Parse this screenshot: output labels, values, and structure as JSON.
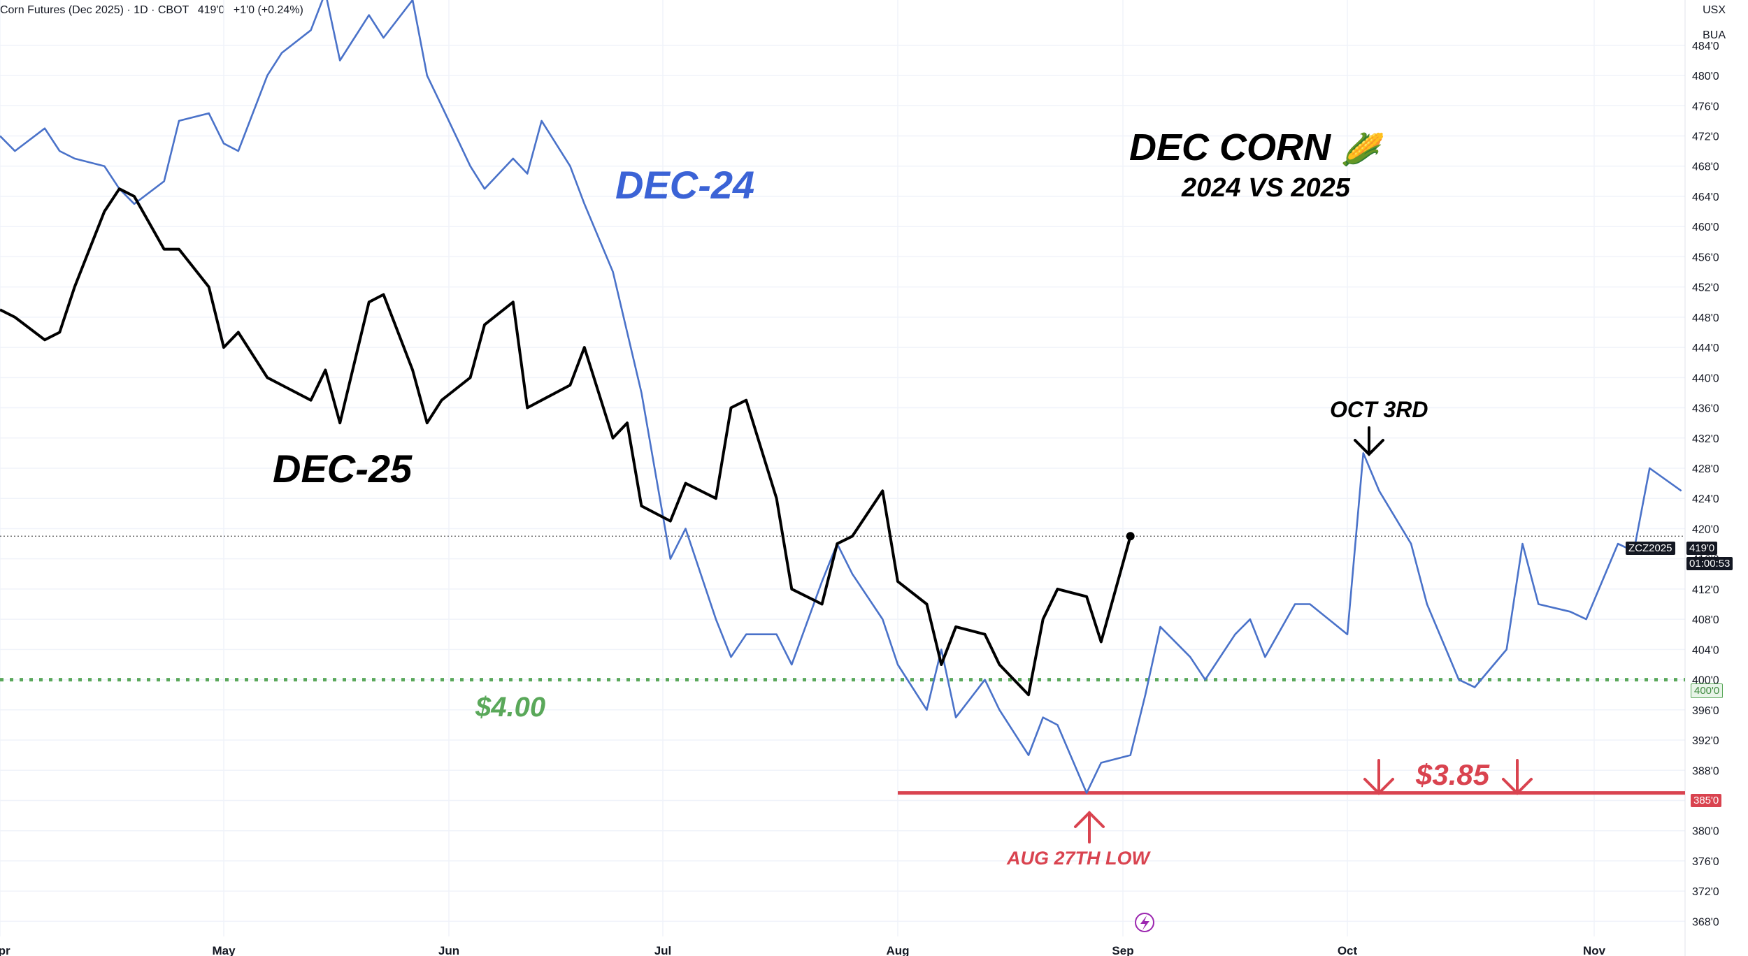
{
  "header": {
    "symbol_title": "Corn Futures (Dec 2025) · 1D · CBOT",
    "last_price": "419'0",
    "change": "+1'0 (+0.24%)"
  },
  "axis_units": {
    "currency": "USX",
    "unit": "BUA"
  },
  "annotations": {
    "title_line1": "DEC CORN",
    "title_emoji": "🌽",
    "title_line2": "2024 VS 2025",
    "dec24_label": "DEC-24",
    "dec25_label": "DEC-25",
    "support_400_label": "$4.00",
    "support_385_label": "$3.85",
    "oct3_label": "OCT 3RD",
    "aug27_label": "AUG 27TH LOW"
  },
  "price_tags": {
    "ticker": "ZCZ2025",
    "current": "419'0",
    "countdown": "01:00:53",
    "level_400": "400'0",
    "level_385": "385'0"
  },
  "colors": {
    "dec24": "#4a72c9",
    "dec25": "#000000",
    "support_green": "#5aa85a",
    "support_red": "#d9434f",
    "grid": "#f0f3fa",
    "axis_text": "#131722",
    "dec24_label": "#3b63d6"
  },
  "chart_data": {
    "type": "line",
    "x_axis": {
      "ticks": [
        "Apr",
        "May",
        "Jun",
        "Jul",
        "Aug",
        "Sep",
        "Oct",
        "Nov"
      ]
    },
    "y_axis": {
      "range": [
        366,
        490
      ],
      "ticks": [
        368,
        372,
        376,
        380,
        384,
        388,
        392,
        396,
        400,
        404,
        408,
        412,
        416,
        420,
        424,
        428,
        432,
        436,
        440,
        444,
        448,
        452,
        456,
        460,
        464,
        468,
        472,
        476,
        480,
        484
      ],
      "tick_labels": [
        "368'0",
        "372'0",
        "376'0",
        "380'0",
        "384'0",
        "388'0",
        "392'0",
        "396'0",
        "400'0",
        "404'0",
        "408'0",
        "412'0",
        "416'0",
        "420'0",
        "424'0",
        "428'0",
        "432'0",
        "436'0",
        "440'0",
        "444'0",
        "448'0",
        "452'0",
        "456'0",
        "460'0",
        "464'0",
        "468'0",
        "472'0",
        "476'0",
        "480'0",
        "484'0"
      ]
    },
    "horizontal_lines": [
      {
        "value": 400,
        "style": "dotted",
        "color": "#5aa85a"
      },
      {
        "value": 385,
        "style": "solid",
        "color": "#d9434f",
        "start_date": "Aug-01"
      },
      {
        "value": 419,
        "style": "dotted",
        "color": "#555555"
      }
    ],
    "series": [
      {
        "name": "DEC-24",
        "color": "#4a72c9",
        "x": [
          "Apr-01",
          "Apr-03",
          "Apr-07",
          "Apr-09",
          "Apr-11",
          "Apr-15",
          "Apr-17",
          "Apr-19",
          "Apr-23",
          "Apr-25",
          "Apr-29",
          "May-01",
          "May-03",
          "May-07",
          "May-09",
          "May-13",
          "May-15",
          "May-17",
          "May-21",
          "May-23",
          "May-27",
          "May-29",
          "May-31",
          "Jun-04",
          "Jun-06",
          "Jun-10",
          "Jun-12",
          "Jun-14",
          "Jun-18",
          "Jun-20",
          "Jun-24",
          "Jun-26",
          "Jun-28",
          "Jul-02",
          "Jul-04",
          "Jul-08",
          "Jul-10",
          "Jul-12",
          "Jul-16",
          "Jul-18",
          "Jul-22",
          "Jul-24",
          "Jul-26",
          "Jul-30",
          "Aug-01",
          "Aug-05",
          "Aug-07",
          "Aug-09",
          "Aug-13",
          "Aug-15",
          "Aug-19",
          "Aug-21",
          "Aug-23",
          "Aug-27",
          "Aug-29",
          "Sep-02",
          "Sep-04",
          "Sep-06",
          "Sep-10",
          "Sep-12",
          "Sep-16",
          "Sep-18",
          "Sep-20",
          "Sep-24",
          "Sep-26",
          "Oct-01",
          "Oct-03",
          "Oct-05",
          "Oct-09",
          "Oct-11",
          "Oct-15",
          "Oct-17",
          "Oct-21",
          "Oct-23",
          "Oct-25",
          "Oct-29",
          "Oct-31",
          "Nov-04",
          "Nov-06",
          "Nov-08",
          "Nov-12"
        ],
        "values": [
          472,
          470,
          473,
          470,
          469,
          468,
          465,
          463,
          466,
          474,
          475,
          471,
          470,
          480,
          483,
          486,
          491,
          482,
          488,
          485,
          490,
          480,
          476,
          468,
          465,
          469,
          467,
          474,
          468,
          463,
          454,
          446,
          438,
          416,
          420,
          408,
          403,
          406,
          406,
          402,
          413,
          418,
          414,
          408,
          402,
          396,
          404,
          395,
          400,
          396,
          390,
          395,
          394,
          385,
          389,
          390,
          398,
          407,
          403,
          400,
          406,
          408,
          403,
          410,
          410,
          406,
          430,
          425,
          418,
          410,
          400,
          399,
          404,
          418,
          410,
          409,
          408,
          418,
          417,
          428,
          425
        ]
      },
      {
        "name": "DEC-25",
        "color": "#000000",
        "x": [
          "Apr-01",
          "Apr-03",
          "Apr-07",
          "Apr-09",
          "Apr-11",
          "Apr-15",
          "Apr-17",
          "Apr-19",
          "Apr-23",
          "Apr-25",
          "Apr-29",
          "May-01",
          "May-03",
          "May-07",
          "May-09",
          "May-13",
          "May-15",
          "May-17",
          "May-21",
          "May-23",
          "May-27",
          "May-29",
          "May-31",
          "Jun-04",
          "Jun-06",
          "Jun-10",
          "Jun-12",
          "Jun-14",
          "Jun-18",
          "Jun-20",
          "Jun-24",
          "Jun-26",
          "Jun-28",
          "Jul-02",
          "Jul-04",
          "Jul-08",
          "Jul-10",
          "Jul-12",
          "Jul-16",
          "Jul-18",
          "Jul-22",
          "Jul-24",
          "Jul-26",
          "Jul-30",
          "Aug-01",
          "Aug-05",
          "Aug-07",
          "Aug-09",
          "Aug-13",
          "Aug-15",
          "Aug-19",
          "Aug-21",
          "Aug-23",
          "Aug-27",
          "Aug-29",
          "Sep-02"
        ],
        "values": [
          449,
          448,
          445,
          446,
          452,
          462,
          465,
          464,
          457,
          457,
          452,
          444,
          446,
          440,
          439,
          437,
          441,
          434,
          450,
          451,
          441,
          434,
          437,
          440,
          447,
          450,
          436,
          437,
          439,
          444,
          432,
          434,
          423,
          421,
          426,
          424,
          436,
          437,
          424,
          412,
          410,
          418,
          419,
          425,
          413,
          410,
          402,
          407,
          406,
          402,
          398,
          408,
          412,
          411,
          405,
          419
        ]
      }
    ],
    "legend": "none",
    "grid": true
  }
}
